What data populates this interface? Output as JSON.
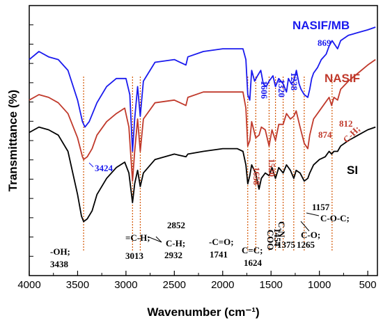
{
  "chart_data": {
    "type": "line",
    "xlabel": "Wavenumber (cm⁻¹)",
    "ylabel": "Transmittance (%)",
    "xlim": [
      4000,
      400
    ],
    "x_reversed": true,
    "x_ticks": [
      4000,
      3500,
      3000,
      2500,
      2000,
      1500,
      1000,
      500
    ],
    "grid": false,
    "series": [
      {
        "name": "NASIF/MB",
        "color": "#1a1aee",
        "points": [
          [
            4000,
            0.8
          ],
          [
            3900,
            0.83
          ],
          [
            3800,
            0.81
          ],
          [
            3700,
            0.8
          ],
          [
            3600,
            0.76
          ],
          [
            3500,
            0.65
          ],
          [
            3450,
            0.57
          ],
          [
            3424,
            0.55
          ],
          [
            3380,
            0.57
          ],
          [
            3300,
            0.64
          ],
          [
            3200,
            0.7
          ],
          [
            3100,
            0.73
          ],
          [
            3000,
            0.73
          ],
          [
            2960,
            0.67
          ],
          [
            2932,
            0.46
          ],
          [
            2910,
            0.58
          ],
          [
            2880,
            0.7
          ],
          [
            2852,
            0.59
          ],
          [
            2820,
            0.72
          ],
          [
            2700,
            0.79
          ],
          [
            2500,
            0.8
          ],
          [
            2380,
            0.78
          ],
          [
            2360,
            0.81
          ],
          [
            2200,
            0.83
          ],
          [
            2000,
            0.84
          ],
          [
            1850,
            0.84
          ],
          [
            1790,
            0.84
          ],
          [
            1760,
            0.8
          ],
          [
            1741,
            0.67
          ],
          [
            1720,
            0.65
          ],
          [
            1700,
            0.76
          ],
          [
            1670,
            0.72
          ],
          [
            1640,
            0.74
          ],
          [
            1606,
            0.76
          ],
          [
            1580,
            0.71
          ],
          [
            1550,
            0.7
          ],
          [
            1520,
            0.72
          ],
          [
            1480,
            0.74
          ],
          [
            1454,
            0.7
          ],
          [
            1420,
            0.73
          ],
          [
            1375,
            0.71
          ],
          [
            1340,
            0.68
          ],
          [
            1320,
            0.73
          ],
          [
            1290,
            0.71
          ],
          [
            1265,
            0.72
          ],
          [
            1238,
            0.76
          ],
          [
            1210,
            0.71
          ],
          [
            1190,
            0.69
          ],
          [
            1157,
            0.67
          ],
          [
            1120,
            0.66
          ],
          [
            1100,
            0.69
          ],
          [
            1080,
            0.73
          ],
          [
            1060,
            0.75
          ],
          [
            1020,
            0.77
          ],
          [
            980,
            0.8
          ],
          [
            930,
            0.82
          ],
          [
            900,
            0.85
          ],
          [
            869,
            0.87
          ],
          [
            850,
            0.86
          ],
          [
            812,
            0.84
          ],
          [
            780,
            0.87
          ],
          [
            700,
            0.89
          ],
          [
            600,
            0.9
          ],
          [
            500,
            0.91
          ],
          [
            420,
            0.92
          ]
        ]
      },
      {
        "name": "NASIF",
        "color": "#c0392b",
        "points": [
          [
            4000,
            0.65
          ],
          [
            3900,
            0.67
          ],
          [
            3800,
            0.66
          ],
          [
            3700,
            0.64
          ],
          [
            3600,
            0.6
          ],
          [
            3500,
            0.51
          ],
          [
            3450,
            0.44
          ],
          [
            3438,
            0.43
          ],
          [
            3400,
            0.44
          ],
          [
            3350,
            0.47
          ],
          [
            3300,
            0.52
          ],
          [
            3200,
            0.57
          ],
          [
            3100,
            0.6
          ],
          [
            3013,
            0.62
          ],
          [
            2970,
            0.55
          ],
          [
            2932,
            0.35
          ],
          [
            2910,
            0.46
          ],
          [
            2880,
            0.58
          ],
          [
            2852,
            0.46
          ],
          [
            2820,
            0.58
          ],
          [
            2700,
            0.64
          ],
          [
            2500,
            0.65
          ],
          [
            2380,
            0.63
          ],
          [
            2360,
            0.66
          ],
          [
            2200,
            0.68
          ],
          [
            2000,
            0.68
          ],
          [
            1850,
            0.68
          ],
          [
            1790,
            0.68
          ],
          [
            1760,
            0.62
          ],
          [
            1741,
            0.48
          ],
          [
            1720,
            0.5
          ],
          [
            1700,
            0.57
          ],
          [
            1658,
            0.51
          ],
          [
            1624,
            0.52
          ],
          [
            1600,
            0.55
          ],
          [
            1560,
            0.54
          ],
          [
            1520,
            0.48
          ],
          [
            1490,
            0.54
          ],
          [
            1454,
            0.5
          ],
          [
            1420,
            0.56
          ],
          [
            1375,
            0.56
          ],
          [
            1340,
            0.6
          ],
          [
            1300,
            0.58
          ],
          [
            1265,
            0.59
          ],
          [
            1240,
            0.61
          ],
          [
            1200,
            0.55
          ],
          [
            1157,
            0.49
          ],
          [
            1120,
            0.47
          ],
          [
            1100,
            0.52
          ],
          [
            1060,
            0.58
          ],
          [
            1000,
            0.61
          ],
          [
            940,
            0.64
          ],
          [
            900,
            0.66
          ],
          [
            874,
            0.63
          ],
          [
            850,
            0.66
          ],
          [
            812,
            0.65
          ],
          [
            780,
            0.69
          ],
          [
            700,
            0.72
          ],
          [
            600,
            0.75
          ],
          [
            500,
            0.78
          ],
          [
            420,
            0.8
          ]
        ]
      },
      {
        "name": "SI",
        "color": "#000000",
        "points": [
          [
            4000,
            0.53
          ],
          [
            3900,
            0.55
          ],
          [
            3800,
            0.54
          ],
          [
            3700,
            0.52
          ],
          [
            3600,
            0.46
          ],
          [
            3500,
            0.3
          ],
          [
            3460,
            0.22
          ],
          [
            3438,
            0.2
          ],
          [
            3400,
            0.21
          ],
          [
            3350,
            0.24
          ],
          [
            3300,
            0.3
          ],
          [
            3200,
            0.36
          ],
          [
            3100,
            0.4
          ],
          [
            3013,
            0.42
          ],
          [
            2970,
            0.38
          ],
          [
            2932,
            0.27
          ],
          [
            2910,
            0.34
          ],
          [
            2880,
            0.39
          ],
          [
            2852,
            0.33
          ],
          [
            2820,
            0.38
          ],
          [
            2700,
            0.43
          ],
          [
            2500,
            0.45
          ],
          [
            2380,
            0.44
          ],
          [
            2360,
            0.45
          ],
          [
            2200,
            0.46
          ],
          [
            2000,
            0.47
          ],
          [
            1850,
            0.47
          ],
          [
            1790,
            0.46
          ],
          [
            1760,
            0.41
          ],
          [
            1741,
            0.34
          ],
          [
            1720,
            0.37
          ],
          [
            1700,
            0.41
          ],
          [
            1660,
            0.38
          ],
          [
            1624,
            0.32
          ],
          [
            1600,
            0.36
          ],
          [
            1560,
            0.38
          ],
          [
            1520,
            0.37
          ],
          [
            1490,
            0.4
          ],
          [
            1454,
            0.36
          ],
          [
            1420,
            0.4
          ],
          [
            1375,
            0.38
          ],
          [
            1340,
            0.41
          ],
          [
            1300,
            0.39
          ],
          [
            1265,
            0.36
          ],
          [
            1240,
            0.39
          ],
          [
            1200,
            0.38
          ],
          [
            1157,
            0.35
          ],
          [
            1120,
            0.36
          ],
          [
            1100,
            0.38
          ],
          [
            1060,
            0.41
          ],
          [
            1000,
            0.43
          ],
          [
            940,
            0.44
          ],
          [
            900,
            0.46
          ],
          [
            874,
            0.45
          ],
          [
            850,
            0.46
          ],
          [
            812,
            0.46
          ],
          [
            780,
            0.48
          ],
          [
            700,
            0.5
          ],
          [
            600,
            0.52
          ],
          [
            500,
            0.54
          ],
          [
            420,
            0.55
          ]
        ]
      }
    ],
    "guides": [
      3438,
      2932,
      2852,
      1741,
      1658,
      1520,
      1454,
      1375,
      1265,
      1157,
      869
    ],
    "series_labels": {
      "nasif_mb": "NASIF/MB",
      "nasif": "NASIF",
      "si": "SI"
    },
    "annotations": {
      "blue": {
        "a3424": "3424",
        "a1606": "1606",
        "a1320": "1320",
        "a1238": "1238",
        "a869": "869"
      },
      "red": {
        "a1658": "1658",
        "a1520": "1520",
        "a812": "812",
        "a874": "874",
        "ach": "C-H;"
      },
      "black": {
        "oh1": "-OH;",
        "oh2": "3438",
        "ch1": "=C-H;",
        "ch2": "3013",
        "ch3": "C-H;",
        "ch4": "2932",
        "a2852": "2852",
        "co1": "-C=O;",
        "co2": "1741",
        "cc1": "C=C;",
        "cc2": "1624",
        "coo1": "COO",
        "coo2": "1454",
        "cn1": "C-N",
        "cn2": "1375",
        "cox1": "C-O;",
        "cox2": "1265",
        "coc1": "C-O-C;",
        "coc2": "1157"
      }
    }
  }
}
